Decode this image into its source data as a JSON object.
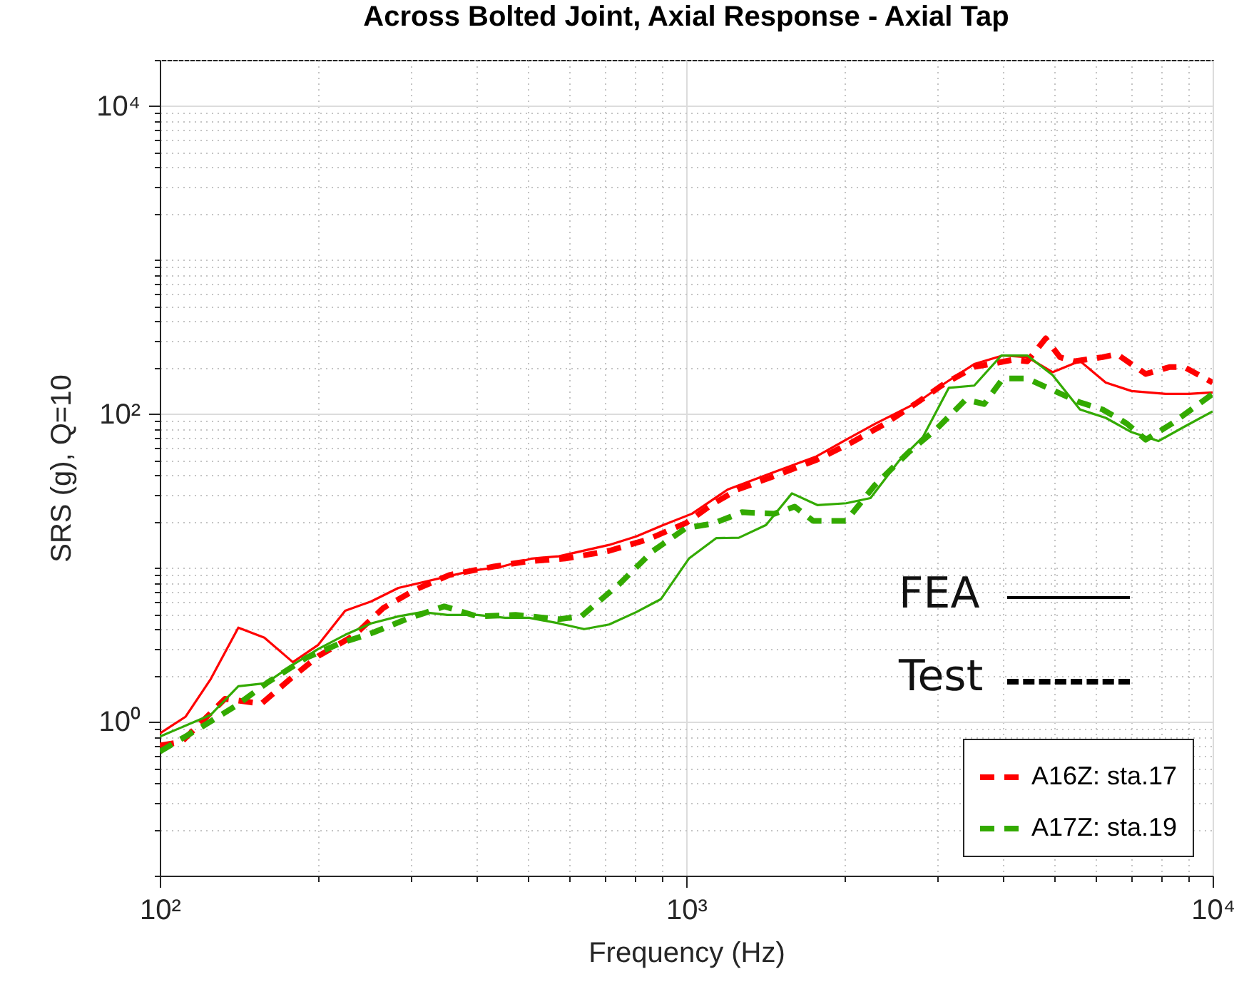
{
  "chart_data": {
    "type": "line",
    "title": "Across Bolted Joint, Axial Response - Axial Tap",
    "xlabel": "Frequency (Hz)",
    "ylabel": "SRS (g), Q=10",
    "log": "xy",
    "grid": true,
    "legend": "bottom right",
    "xlim": [
      100,
      10000
    ],
    "ylim": [
      0.1,
      20000
    ],
    "xticks": [
      {
        "value": 100,
        "label": "10²"
      },
      {
        "value": 200,
        "label": null
      },
      {
        "value": 300,
        "label": null
      },
      {
        "value": 400,
        "label": null
      },
      {
        "value": 500,
        "label": null
      },
      {
        "value": 600,
        "label": null
      },
      {
        "value": 700,
        "label": null
      },
      {
        "value": 800,
        "label": null
      },
      {
        "value": 900,
        "label": null
      },
      {
        "value": 1000,
        "label": "10³"
      },
      {
        "value": 2000,
        "label": null
      },
      {
        "value": 3000,
        "label": null
      },
      {
        "value": 4000,
        "label": null
      },
      {
        "value": 5000,
        "label": null
      },
      {
        "value": 6000,
        "label": null
      },
      {
        "value": 7000,
        "label": null
      },
      {
        "value": 8000,
        "label": null
      },
      {
        "value": 9000,
        "label": null
      },
      {
        "value": 10000,
        "label": "10⁴"
      }
    ],
    "yticks": [
      {
        "value": 0.1,
        "label": null
      },
      {
        "value": 0.2,
        "label": null
      },
      {
        "value": 0.3,
        "label": null
      },
      {
        "value": 0.4,
        "label": null
      },
      {
        "value": 0.5,
        "label": null
      },
      {
        "value": 0.6,
        "label": null
      },
      {
        "value": 0.7,
        "label": null
      },
      {
        "value": 0.8,
        "label": null
      },
      {
        "value": 0.9,
        "label": null
      },
      {
        "value": 1,
        "label": "10⁰"
      },
      {
        "value": 2,
        "label": null
      },
      {
        "value": 3,
        "label": null
      },
      {
        "value": 4,
        "label": null
      },
      {
        "value": 5,
        "label": null
      },
      {
        "value": 6,
        "label": null
      },
      {
        "value": 7,
        "label": null
      },
      {
        "value": 8,
        "label": null
      },
      {
        "value": 9,
        "label": null
      },
      {
        "value": 10,
        "label": null
      },
      {
        "value": 20,
        "label": null
      },
      {
        "value": 30,
        "label": null
      },
      {
        "value": 40,
        "label": null
      },
      {
        "value": 50,
        "label": null
      },
      {
        "value": 60,
        "label": null
      },
      {
        "value": 70,
        "label": null
      },
      {
        "value": 80,
        "label": null
      },
      {
        "value": 90,
        "label": null
      },
      {
        "value": 100,
        "label": "10²"
      },
      {
        "value": 200,
        "label": null
      },
      {
        "value": 300,
        "label": null
      },
      {
        "value": 400,
        "label": null
      },
      {
        "value": 500,
        "label": null
      },
      {
        "value": 600,
        "label": null
      },
      {
        "value": 700,
        "label": null
      },
      {
        "value": 800,
        "label": null
      },
      {
        "value": 900,
        "label": null
      },
      {
        "value": 1000,
        "label": null
      },
      {
        "value": 2000,
        "label": null
      },
      {
        "value": 3000,
        "label": null
      },
      {
        "value": 4000,
        "label": null
      },
      {
        "value": 5000,
        "label": null
      },
      {
        "value": 6000,
        "label": null
      },
      {
        "value": 7000,
        "label": null
      },
      {
        "value": 8000,
        "label": null
      },
      {
        "value": 9000,
        "label": null
      },
      {
        "value": 10000,
        "label": "10⁴"
      },
      {
        "value": 20000,
        "label": null
      }
    ],
    "series": [
      {
        "color": "#ff0000",
        "line_style": "solid",
        "x": [
          100,
          112,
          125,
          141,
          158,
          179,
          200,
          225,
          252,
          284,
          392,
          447,
          509,
          573,
          714,
          804,
          905,
          1026,
          1199,
          1445,
          1762,
          2013,
          2281,
          2750,
          3113,
          3525,
          3996,
          4446,
          4966,
          5598,
          6265,
          7015,
          8147,
          9000,
          10000
        ],
        "values": [
          0.84,
          1.08,
          1.9,
          4.09,
          3.52,
          2.44,
          3.16,
          5.27,
          6.05,
          7.41,
          9.58,
          10.2,
          11.5,
          11.9,
          14.1,
          16,
          19,
          22.5,
          32.3,
          41.1,
          52.7,
          68.1,
          86.1,
          119,
          160,
          211,
          240,
          234,
          187,
          221,
          160,
          141,
          135,
          135,
          138
        ]
      },
      {
        "name": "A16Z: sta.17",
        "color": "#ff0000",
        "line_style": "dashed",
        "x": [
          100,
          110,
          133,
          156,
          177,
          200,
          234,
          266,
          307,
          355,
          431,
          497,
          589,
          714,
          845,
          1000,
          1125,
          1252,
          1510,
          1775,
          2062,
          2381,
          2750,
          3055,
          3525,
          4178,
          4446,
          4819,
          5129,
          5458,
          6180,
          6577,
          7464,
          8299,
          8831,
          10000
        ],
        "values": [
          0.7,
          0.74,
          1.41,
          1.31,
          1.9,
          2.67,
          3.64,
          5.5,
          7.26,
          8.99,
          10.2,
          11,
          11.5,
          12.9,
          15.3,
          19.6,
          26.1,
          32.3,
          40.8,
          50.6,
          65.3,
          86.1,
          119,
          153,
          202,
          225,
          220,
          310,
          234,
          220,
          234,
          245,
          182,
          202,
          202,
          160
        ]
      },
      {
        "color": "#33aa00",
        "line_style": "solid",
        "x": [
          100,
          125,
          141,
          159,
          178,
          200,
          225,
          252,
          284,
          315,
          352,
          401,
          453,
          503,
          573,
          640,
          714,
          804,
          895,
          1012,
          1140,
          1259,
          1418,
          1588,
          1775,
          2013,
          2239,
          2535,
          2818,
          3155,
          3525,
          3969,
          4446,
          4966,
          5598,
          6265,
          7015,
          7889,
          8831,
          10000
        ],
        "values": [
          0.8,
          1.11,
          1.7,
          1.78,
          2.32,
          2.97,
          3.67,
          4.36,
          4.84,
          5.16,
          4.95,
          4.95,
          4.74,
          4.74,
          4.36,
          4,
          4.29,
          5.16,
          6.26,
          11.5,
          15.6,
          15.7,
          19,
          30.5,
          25.6,
          26.3,
          28.4,
          49.5,
          71.1,
          148,
          153,
          240,
          240,
          179,
          107,
          94.4,
          76.2,
          66.7,
          82.6,
          104
        ]
      },
      {
        "name": "A17Z: sta.19",
        "color": "#33aa00",
        "line_style": "dashed",
        "x": [
          100,
          121,
          139,
          161,
          190,
          220,
          254,
          294,
          347,
          401,
          474,
          573,
          632,
          748,
          865,
          1000,
          1125,
          1276,
          1472,
          1607,
          1743,
          2013,
          2281,
          2649,
          2999,
          3396,
          3681,
          3996,
          4446,
          4943,
          5598,
          6180,
          6871,
          7464,
          8375,
          10000
        ],
        "values": [
          0.64,
          0.94,
          1.26,
          1.82,
          2.61,
          3.23,
          3.79,
          4.64,
          5.62,
          4.84,
          4.95,
          4.64,
          4.84,
          7.91,
          12.9,
          18.2,
          19.4,
          23,
          22.5,
          25,
          20.2,
          20.2,
          34.4,
          56.6,
          80.8,
          124,
          116,
          170,
          170,
          144,
          119,
          107,
          86.7,
          68.1,
          86.7,
          135
        ]
      }
    ],
    "annotations": [
      "FEA",
      "Test"
    ]
  }
}
